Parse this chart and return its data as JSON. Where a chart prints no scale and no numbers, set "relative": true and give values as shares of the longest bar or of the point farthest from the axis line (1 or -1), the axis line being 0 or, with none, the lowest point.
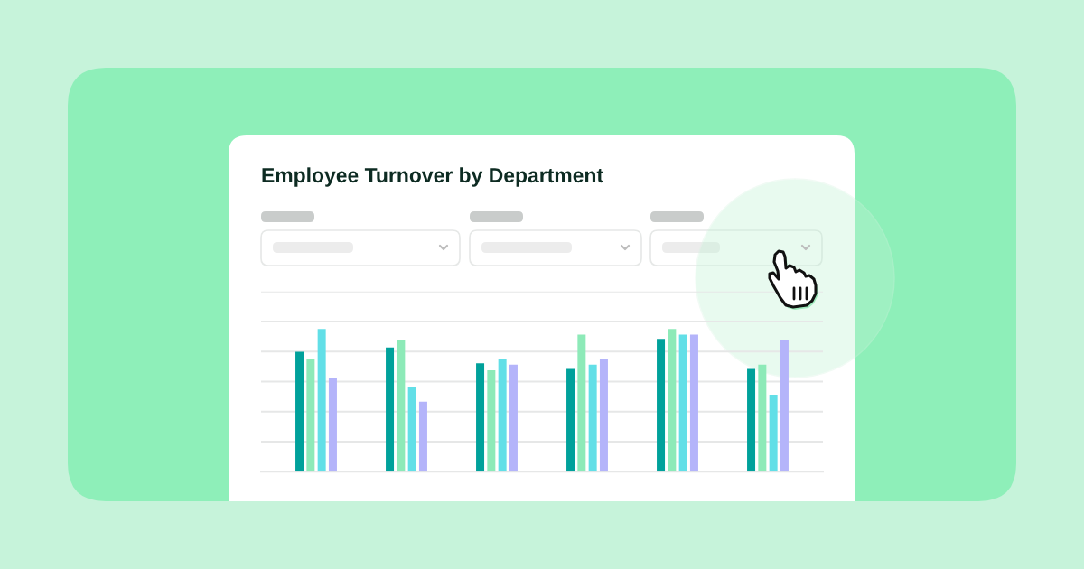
{
  "chart_data": {
    "type": "bar",
    "title": "Employee Turnover by Department",
    "categories": [
      null,
      null,
      null,
      null,
      null,
      null
    ],
    "relative": true,
    "grid": "y",
    "series": [
      {
        "color": "#00a19b",
        "values": [
          0.84,
          0.87,
          0.76,
          0.72,
          0.93,
          0.72
        ]
      },
      {
        "color": "#8deab8",
        "values": [
          0.79,
          0.92,
          0.71,
          0.96,
          1.0,
          0.75
        ]
      },
      {
        "color": "#62dfe7",
        "values": [
          1.0,
          0.59,
          0.79,
          0.75,
          0.96,
          0.54
        ]
      },
      {
        "color": "#b4b4fa",
        "values": [
          0.66,
          0.49,
          0.75,
          0.79,
          0.96,
          0.92
        ]
      }
    ]
  }
}
